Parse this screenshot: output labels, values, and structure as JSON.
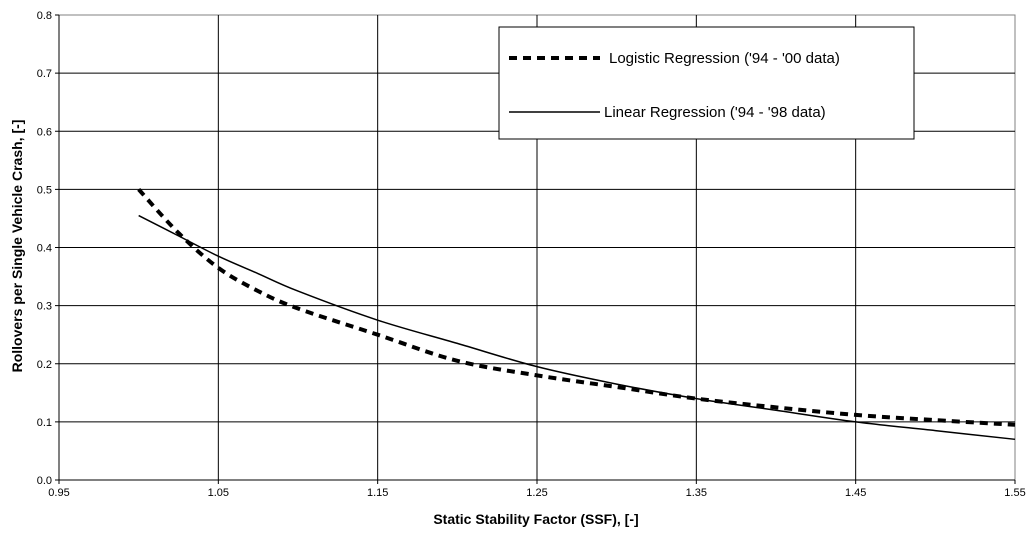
{
  "chart_data": {
    "type": "line",
    "title": "",
    "xlabel": "Static Stability Factor (SSF), [-]",
    "ylabel": "Rollovers per Single Vehicle Crash, [-]",
    "xlim": [
      0.95,
      1.55
    ],
    "ylim": [
      0,
      0.8
    ],
    "x_ticks": [
      "0.95",
      "1.05",
      "1.15",
      "1.25",
      "1.35",
      "1.45",
      "1.55"
    ],
    "y_ticks": [
      "0.0",
      "0.1",
      "0.2",
      "0.3",
      "0.4",
      "0.5",
      "0.6",
      "0.7",
      "0.8"
    ],
    "grid": true,
    "legend_position": "top-right",
    "series": [
      {
        "name": "Logistic Regression ('94 - '00 data)",
        "style": "dashed",
        "color": "#000000",
        "x": [
          1.0,
          1.025,
          1.05,
          1.075,
          1.1,
          1.15,
          1.2,
          1.25,
          1.3,
          1.35,
          1.4,
          1.45,
          1.5,
          1.55
        ],
        "y": [
          0.5,
          0.425,
          0.365,
          0.325,
          0.295,
          0.25,
          0.205,
          0.18,
          0.16,
          0.14,
          0.125,
          0.112,
          0.103,
          0.095
        ]
      },
      {
        "name": "Linear Regression ('94 - '98 data)",
        "style": "solid",
        "color": "#000000",
        "x": [
          1.0,
          1.025,
          1.05,
          1.075,
          1.1,
          1.15,
          1.2,
          1.25,
          1.3,
          1.35,
          1.4,
          1.45,
          1.5,
          1.55
        ],
        "y": [
          0.455,
          0.42,
          0.385,
          0.355,
          0.325,
          0.275,
          0.235,
          0.195,
          0.165,
          0.14,
          0.12,
          0.1,
          0.085,
          0.07
        ]
      }
    ]
  }
}
